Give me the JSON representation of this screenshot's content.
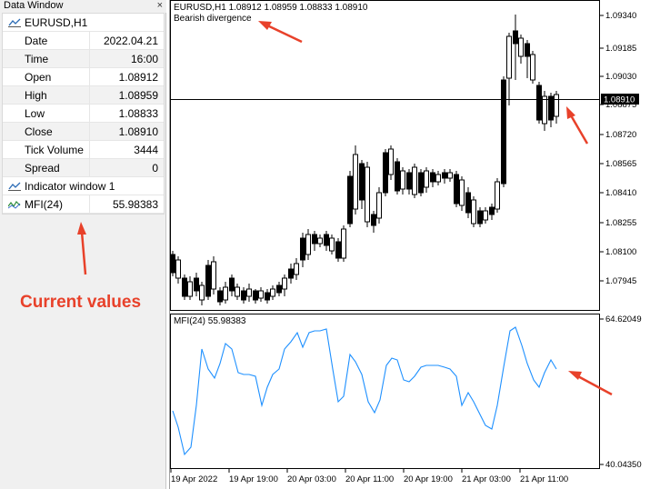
{
  "data_window": {
    "title": "Data Window",
    "close_glyph": "×",
    "symbol": "EURUSD,H1",
    "rows": [
      {
        "key": "Date",
        "value": "2022.04.21"
      },
      {
        "key": "Time",
        "value": "16:00"
      },
      {
        "key": "Open",
        "value": "1.08912"
      },
      {
        "key": "High",
        "value": "1.08959"
      },
      {
        "key": "Low",
        "value": "1.08833"
      },
      {
        "key": "Close",
        "value": "1.08910"
      },
      {
        "key": "Tick Volume",
        "value": "3444"
      },
      {
        "key": "Spread",
        "value": "0"
      }
    ],
    "indicator_window": "Indicator window 1",
    "indicator": {
      "name": "MFI(24)",
      "value": "55.98383"
    }
  },
  "annotations": {
    "current_values": "Current values",
    "arrow_color": "#e8412a"
  },
  "chart": {
    "symbol_line": "EURUSD,H1  1.08912 1.08959 1.08833 1.08910",
    "pattern_label": "Bearish divergence",
    "price_badge": "1.08910",
    "price_axis": [
      "1.09340",
      "1.09185",
      "1.09030",
      "1.08875",
      "1.08720",
      "1.08565",
      "1.08410",
      "1.08255",
      "1.08100",
      "1.07945"
    ],
    "mfi_label": "MFI(24) 55.98383",
    "mfi_axis": [
      "64.62049",
      "40.04350"
    ],
    "time_axis": [
      "19 Apr 2022",
      "19 Apr 19:00",
      "20 Apr 03:00",
      "20 Apr 11:00",
      "20 Apr 19:00",
      "21 Apr 03:00",
      "21 Apr 11:00"
    ],
    "line_color": "#1e90ff",
    "grid_color": "#000000"
  }
}
